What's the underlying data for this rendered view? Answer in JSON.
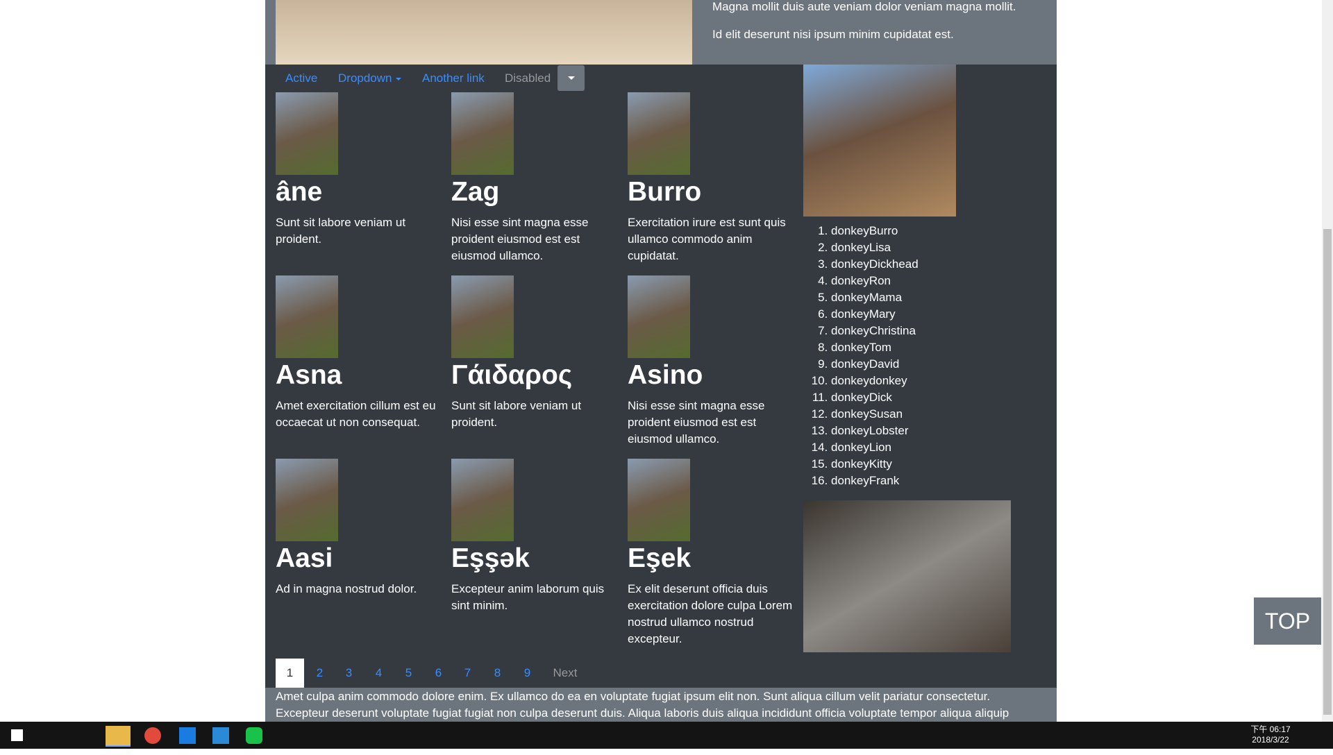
{
  "hero": {
    "lines": [
      "Magna mollit duis aute veniam dolor veniam magna mollit.",
      "Id elit deserunt nisi ipsum minim cupidatat est."
    ]
  },
  "nav": {
    "items": [
      "Active",
      "Dropdown",
      "Another link",
      "Disabled"
    ]
  },
  "cards": [
    {
      "title": "âne",
      "text": "Sunt sit labore veniam ut proident."
    },
    {
      "title": "Zag",
      "text": "Nisi esse sint magna esse proident eiusmod est est eiusmod ullamco."
    },
    {
      "title": "Burro",
      "text": "Exercitation irure est sunt quis ullamco commodo anim cupidatat."
    },
    {
      "title": "Asna",
      "text": "Amet exercitation cillum est eu occaecat ut non consequat."
    },
    {
      "title": "Γάιδαρος",
      "text": "Sunt sit labore veniam ut proident."
    },
    {
      "title": "Asino",
      "text": "Nisi esse sint magna esse proident eiusmod est est eiusmod ullamco."
    },
    {
      "title": "Aasi",
      "text": "Ad in magna nostrud dolor."
    },
    {
      "title": "Eşşək",
      "text": "Excepteur anim laborum quis sint minim."
    },
    {
      "title": "Eşek",
      "text": "Ex elit deserunt officia duis exercitation dolore culpa Lorem nostrud ullamco nostrud excepteur."
    }
  ],
  "list": [
    "donkeyBurro",
    "donkeyLisa",
    "donkeyDickhead",
    "donkeyRon",
    "donkeyMama",
    "donkeyMary",
    "donkeyChristina",
    "donkeyTom",
    "donkeyDavid",
    "donkeydonkey",
    "donkeyDick",
    "donkeySusan",
    "donkeyLobster",
    "donkeyLion",
    "donkeyKitty",
    "donkeyFrank"
  ],
  "pagination": [
    "1",
    "2",
    "3",
    "4",
    "5",
    "6",
    "7",
    "8",
    "9",
    "Next"
  ],
  "footer": {
    "text": "Amet culpa anim commodo dolore enim. Ex ullamco do ea en voluptate fugiat ipsum elit non. Sunt aliqua cillum velit pariatur consectetur. Excepteur deserunt voluptate fugiat fugiat non culpa deserunt duis. Aliqua laboris duis aliqua incididunt officia voluptate tempor aliqua aliquip proident nisi deserunt. Sint occaecat mollit cillum ea ex dolore consequat do id qui nostrud sit. Consectetur anim sunt labore aliqua voluptate ad culpa. ."
  },
  "top_button": "TOP",
  "taskbar": {
    "time": "下午 06:17",
    "date": "2018/3/22"
  }
}
